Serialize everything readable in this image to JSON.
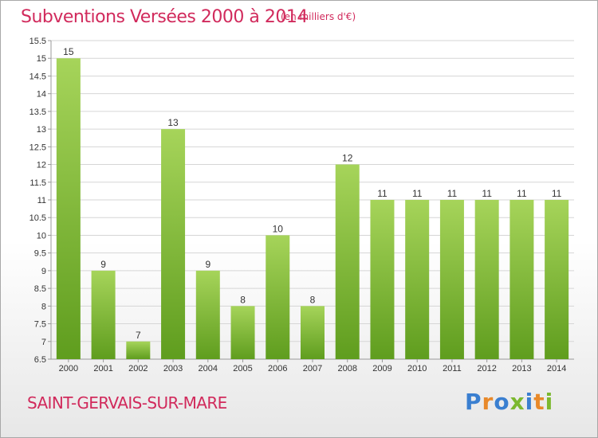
{
  "title": "Subventions Versées 2000 à 2014",
  "subtitle": "(en milliers d'€)",
  "location": "SAINT-GERVAIS-SUR-MARE",
  "brand": {
    "text": "Proxiti",
    "letter_colors": [
      "#3a7fd0",
      "#e8892a",
      "#3a7fd0",
      "#7cb82f",
      "#3a7fd0",
      "#e8892a",
      "#7cb82f"
    ]
  },
  "colors": {
    "bar_top": "#a6d45a",
    "bar_bottom": "#5f9d1e",
    "grid": "#d6d6d6",
    "axis": "#999999",
    "text": "#333333",
    "accent": "#d12a5c"
  },
  "chart_data": {
    "type": "bar",
    "title": "Subventions Versées 2000 à 2014",
    "subtitle": "(en milliers d'€)",
    "xlabel": "",
    "ylabel": "",
    "categories": [
      "2000",
      "2001",
      "2002",
      "2003",
      "2004",
      "2005",
      "2006",
      "2007",
      "2008",
      "2009",
      "2010",
      "2011",
      "2012",
      "2013",
      "2014"
    ],
    "values": [
      15,
      9,
      7,
      13,
      9,
      8,
      10,
      8,
      12,
      11,
      11,
      11,
      11,
      11,
      11
    ],
    "data_labels": [
      "15",
      "9",
      "7",
      "13",
      "9",
      "8",
      "10",
      "8",
      "12",
      "11",
      "11",
      "11",
      "11",
      "11",
      "11"
    ],
    "ylim": [
      6.5,
      15.5
    ],
    "yticks": [
      6.5,
      7,
      7.5,
      8,
      8.5,
      9,
      9.5,
      10,
      10.5,
      11,
      11.5,
      12,
      12.5,
      13,
      13.5,
      14,
      14.5,
      15,
      15.5
    ],
    "ytick_labels": [
      "6.5",
      "7",
      "7.5",
      "8",
      "8.5",
      "9",
      "9.5",
      "10",
      "10.5",
      "11",
      "11.5",
      "12",
      "12.5",
      "13",
      "13.5",
      "14",
      "14.5",
      "15",
      "15.5"
    ],
    "grid": true,
    "legend": "none"
  }
}
